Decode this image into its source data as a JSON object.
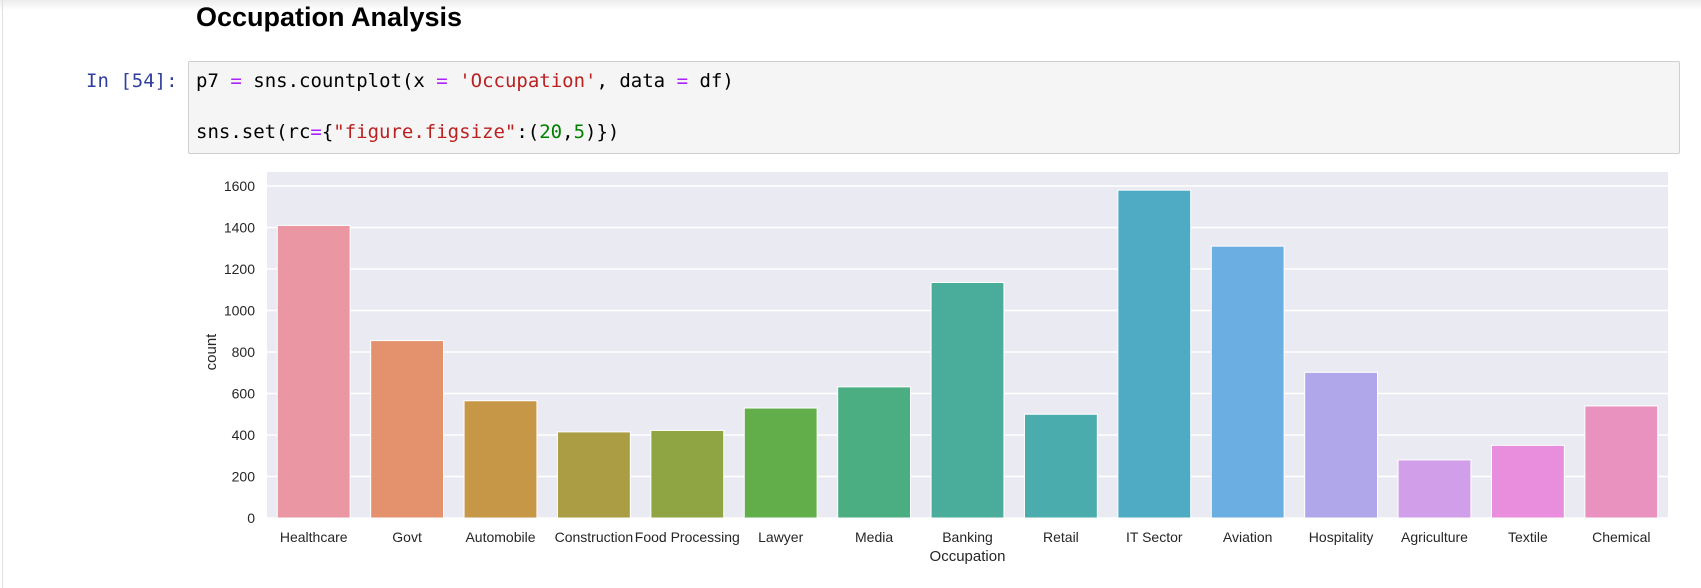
{
  "notebook": {
    "heading": "Occupation Analysis",
    "cell": {
      "prompt": "In [54]:",
      "line1": {
        "var": "p7",
        "assign": "=",
        "call": "sns.countplot(x",
        "eq1": "=",
        "arg_str": "'Occupation'",
        "sep": ", data",
        "eq2": "=",
        "tail": "df)"
      },
      "line2": {
        "head": "sns.set(rc",
        "eq": "=",
        "brace_open": "{",
        "key": "\"figure.figsize\"",
        "colon": ":(",
        "n1": "20",
        "comma": ",",
        "n2": "5",
        "close": ")})"
      }
    }
  },
  "colors": {
    "plot_bg": "#eaeaf2",
    "grid": "#ffffff"
  },
  "chart_data": {
    "type": "bar",
    "categories": [
      "Healthcare",
      "Govt",
      "Automobile",
      "Construction",
      "Food Processing",
      "Lawyer",
      "Media",
      "Banking",
      "Retail",
      "IT Sector",
      "Aviation",
      "Hospitality",
      "Agriculture",
      "Textile",
      "Chemical"
    ],
    "values": [
      1410,
      855,
      565,
      415,
      422,
      530,
      632,
      1135,
      500,
      1580,
      1310,
      702,
      280,
      350,
      540
    ],
    "colors": [
      "#ea96a3",
      "#e4926d",
      "#c69746",
      "#aa9d43",
      "#8fa543",
      "#62ae4b",
      "#4aae82",
      "#4aad9b",
      "#4bacad",
      "#4fabc3",
      "#6aaee2",
      "#b0a6ea",
      "#d19eea",
      "#e88edc",
      "#e992bf"
    ],
    "xlabel": "Occupation",
    "ylabel": "count",
    "ylim": [
      0,
      1600
    ],
    "yticks": [
      0,
      200,
      400,
      600,
      800,
      1000,
      1200,
      1400,
      1600
    ],
    "grid": true
  }
}
